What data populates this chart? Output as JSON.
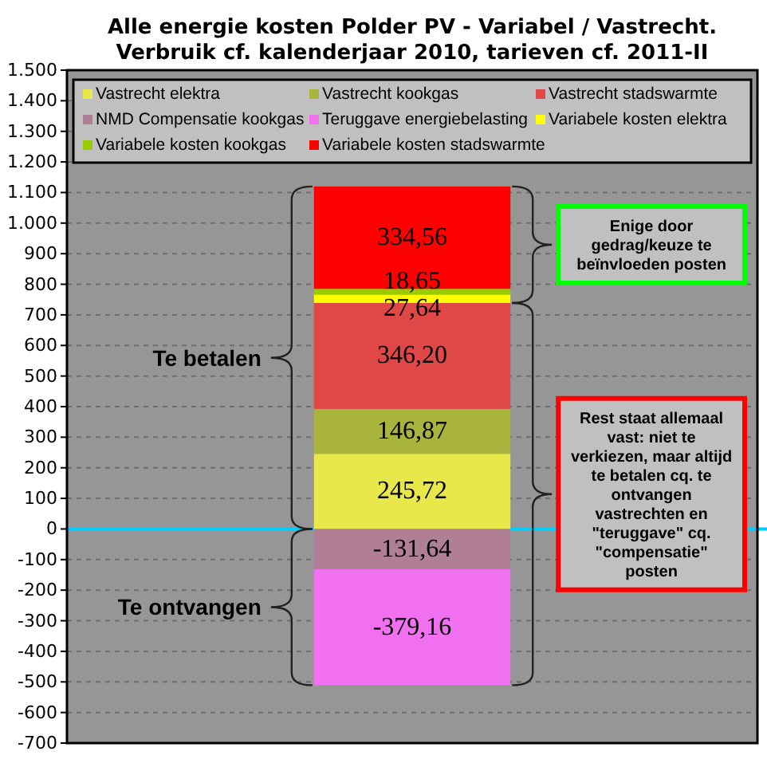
{
  "chart_data": {
    "type": "bar",
    "title": "Alle energie kosten Polder PV - Variabel / Vastrecht.\nVerbruik cf. kalenderjaar 2010, tarieven cf. 2011-II",
    "categories": [
      null
    ],
    "stacked": true,
    "series": [
      {
        "name": "Vastrecht elektra",
        "color": "#e8e84a",
        "values": [
          245.72
        ],
        "value_labels": [
          "245,72"
        ]
      },
      {
        "name": "Vastrecht kookgas",
        "color": "#a9b43c",
        "values": [
          146.87
        ],
        "value_labels": [
          "146,87"
        ]
      },
      {
        "name": "Vastrecht stadswarmte",
        "color": "#e04848",
        "values": [
          346.2
        ],
        "value_labels": [
          "346,20"
        ]
      },
      {
        "name": "NMD Compensatie kookgas",
        "color": "#b07f95",
        "values": [
          -131.64
        ],
        "value_labels": [
          "-131,64"
        ]
      },
      {
        "name": "Teruggave energiebelasting",
        "color": "#f070f0",
        "values": [
          -379.16
        ],
        "value_labels": [
          "-379,16"
        ]
      },
      {
        "name": "Variabele kosten elektra",
        "color": "#ffff00",
        "values": [
          27.64
        ],
        "value_labels": [
          "27,64"
        ]
      },
      {
        "name": "Variabele kosten kookgas",
        "color": "#99cc00",
        "values": [
          18.65
        ],
        "value_labels": [
          "18,65"
        ]
      },
      {
        "name": "Variabele kosten stadswarmte",
        "color": "#ff0000",
        "values": [
          334.56
        ],
        "value_labels": [
          "334,56"
        ]
      }
    ],
    "ylim": [
      -700,
      1500
    ],
    "yticks": [
      {
        "value": 1500,
        "label": "1.500"
      },
      {
        "value": 1400,
        "label": "1.400"
      },
      {
        "value": 1300,
        "label": "1.300"
      },
      {
        "value": 1200,
        "label": "1.200"
      },
      {
        "value": 1100,
        "label": "1.100"
      },
      {
        "value": 1000,
        "label": "1.000"
      },
      900,
      800,
      700,
      600,
      500,
      400,
      300,
      200,
      100,
      0,
      -100,
      -200,
      -300,
      -400,
      -500,
      -600,
      -700
    ],
    "grid": "y",
    "legend": "top",
    "ref_lines": [
      {
        "axis": "y",
        "value": 0,
        "color": "#00ccff"
      }
    ],
    "annotations": [
      "Te betalen",
      "Te ontvangen",
      "Enige door gedrag/keuze te beïnvloeden posten",
      "Rest staat allemaal vast: niet te verkiezen, maar altijd te betalen cq. te ontvangen vastrechten en \"teruggave\" cq. \"compensatie\" posten"
    ]
  }
}
